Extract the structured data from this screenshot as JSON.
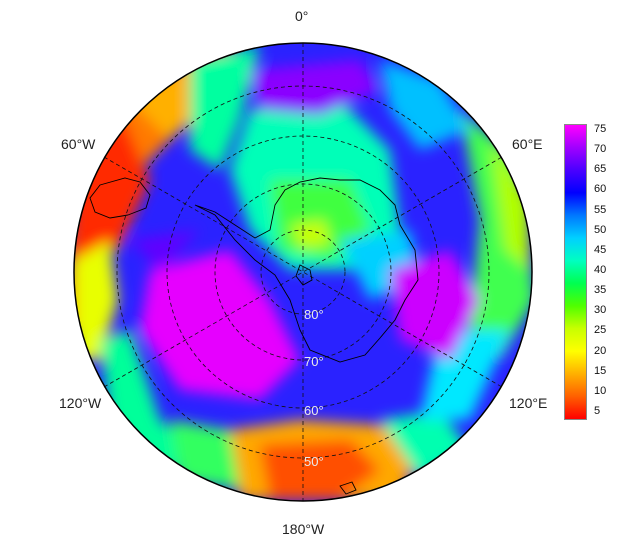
{
  "map": {
    "projection": "south polar stereographic",
    "longitude_labels": {
      "top": "0°",
      "upper_left": "60°W",
      "upper_right": "60°E",
      "lower_left": "120°W",
      "lower_right": "120°E",
      "bottom": "180°W"
    },
    "latitude_labels": [
      "80°",
      "70°",
      "60°",
      "50°"
    ]
  },
  "colorbar": {
    "ticks": [
      "75",
      "70",
      "65",
      "60",
      "55",
      "50",
      "45",
      "40",
      "35",
      "30",
      "25",
      "20",
      "15",
      "10",
      "5"
    ],
    "colors": [
      "#ff00ff",
      "#a000ff",
      "#4a00ff",
      "#0000ff",
      "#0078ff",
      "#00d0ff",
      "#00ffc0",
      "#00ff50",
      "#50ff00",
      "#c8ff00",
      "#ffff00",
      "#ffb000",
      "#ff6000",
      "#ff0000"
    ]
  }
}
